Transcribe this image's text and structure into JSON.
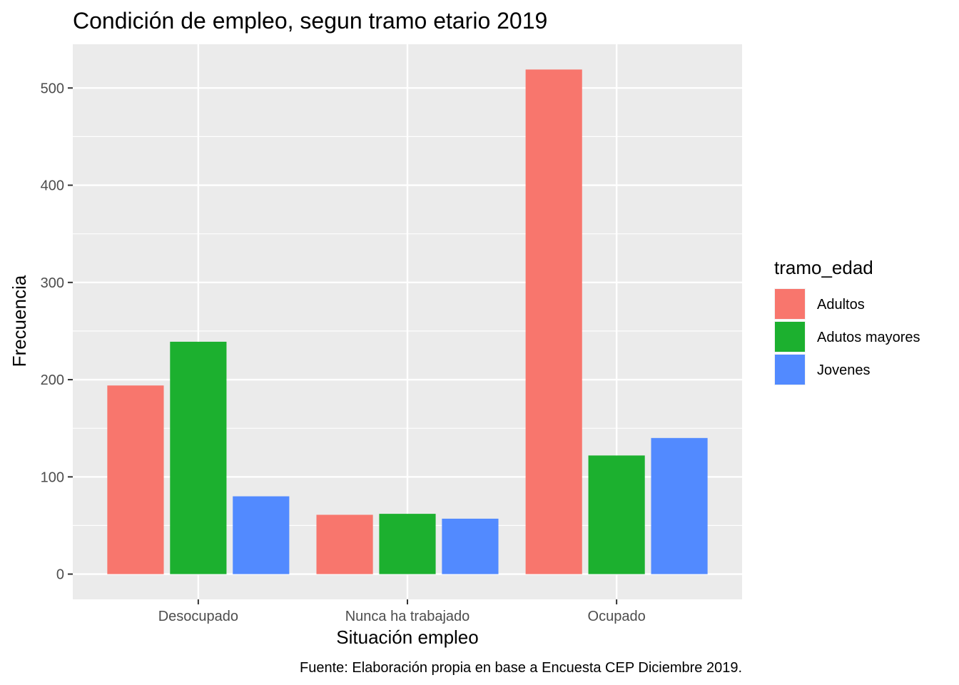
{
  "chart_data": {
    "type": "bar",
    "title": "Condición de empleo, segun tramo etario 2019",
    "xlabel": "Situación empleo",
    "ylabel": "Frecuencia",
    "caption": "Fuente: Elaboración propia en base a Encuesta CEP Diciembre 2019.",
    "categories": [
      "Desocupado",
      "Nunca ha trabajado",
      "Ocupado"
    ],
    "series": [
      {
        "name": "Adultos",
        "color": "#F8766D",
        "values": [
          194,
          61,
          519
        ]
      },
      {
        "name": "Adutos mayores",
        "color": "#1CB02F",
        "values": [
          239,
          62,
          122
        ]
      },
      {
        "name": "Jovenes",
        "color": "#528AFF",
        "values": [
          80,
          57,
          140
        ]
      }
    ],
    "legend_title": "tramo_edad",
    "legend_position": "right",
    "ylim": [
      -26,
      545
    ],
    "yticks": [
      0,
      100,
      200,
      300,
      400,
      500
    ],
    "grid": true,
    "panel_color": "#EBEBEB"
  }
}
